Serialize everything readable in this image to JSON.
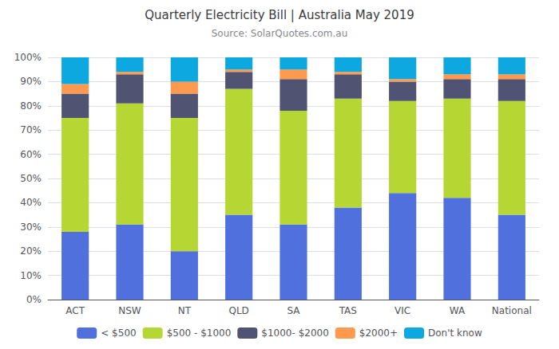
{
  "chart_data": {
    "type": "bar",
    "title": "Quarterly Electricity Bill | Australia May 2019",
    "subtitle": "Source: SolarQuotes.com.au",
    "categories": [
      "ACT",
      "NSW",
      "NT",
      "QLD",
      "SA",
      "TAS",
      "VIC",
      "WA",
      "National"
    ],
    "series": [
      {
        "name": "< $500",
        "values": [
          28,
          31,
          20,
          35,
          31,
          38,
          44,
          42,
          35
        ]
      },
      {
        "name": "$500 - $1000",
        "values": [
          47,
          50,
          55,
          52,
          47,
          45,
          38,
          41,
          47
        ]
      },
      {
        "name": "$1000- $2000",
        "values": [
          10,
          12,
          10,
          7,
          13,
          10,
          8,
          8,
          9
        ]
      },
      {
        "name": "$2000+",
        "values": [
          4,
          1,
          5,
          1,
          4,
          1,
          1,
          2,
          2
        ]
      },
      {
        "name": "Don't know",
        "values": [
          11,
          6,
          10,
          5,
          5,
          6,
          9,
          7,
          7
        ]
      }
    ],
    "stacked": true,
    "ylim": [
      0,
      100
    ],
    "yticks": [
      {
        "value": 0,
        "label": "0%"
      },
      {
        "value": 10,
        "label": "10%"
      },
      {
        "value": 20,
        "label": "20%"
      },
      {
        "value": 30,
        "label": "30%"
      },
      {
        "value": 40,
        "label": "40%"
      },
      {
        "value": 50,
        "label": "50%"
      },
      {
        "value": 60,
        "label": "60%"
      },
      {
        "value": 70,
        "label": "70%"
      },
      {
        "value": 80,
        "label": "80%"
      },
      {
        "value": 90,
        "label": "90%"
      },
      {
        "value": 100,
        "label": "100%"
      }
    ],
    "grid": true,
    "legend": "bottom"
  }
}
